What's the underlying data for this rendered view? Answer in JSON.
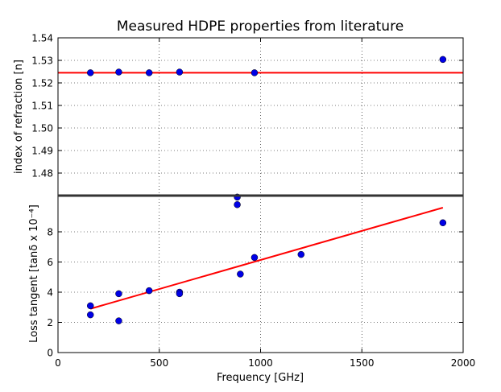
{
  "chart_data": [
    {
      "type": "scatter",
      "title": "Measured HDPE properties from literature",
      "ylabel": "index of refraction [n]",
      "xlabel": "",
      "xlim": [
        0,
        2000
      ],
      "ylim": [
        1.47,
        1.54
      ],
      "y_tick_labels": [
        "1.48",
        "1.49",
        "1.50",
        "1.51",
        "1.52",
        "1.53",
        "1.54"
      ],
      "grid": "dotted, both axes",
      "series": [
        {
          "marker": "circle",
          "color": "#0000e6",
          "x": [
            160,
            300,
            450,
            600,
            970,
            1900
          ],
          "y": [
            1.5245,
            1.5248,
            1.5245,
            1.5248,
            1.5245,
            1.5304
          ]
        }
      ],
      "fit_line": {
        "color": "#ff0000",
        "y": 1.5245
      }
    },
    {
      "type": "scatter",
      "title": "",
      "ylabel": "Loss tangent [tanδ x 10⁻⁴]",
      "xlabel": "Frequency [GHz]",
      "xlim": [
        0,
        2000
      ],
      "ylim": [
        0,
        10.4
      ],
      "x_tick_labels": [
        "0",
        "500",
        "1000",
        "1500",
        "2000"
      ],
      "y_tick_labels": [
        "0",
        "2",
        "4",
        "6",
        "8"
      ],
      "grid": "dotted, both axes",
      "series": [
        {
          "marker": "circle",
          "color": "#0000e6",
          "x": [
            160,
            160,
            300,
            300,
            450,
            600,
            600,
            885,
            885,
            900,
            970,
            1200,
            1900
          ],
          "y": [
            3.1,
            2.5,
            3.9,
            2.1,
            4.1,
            4.0,
            3.9,
            10.3,
            9.8,
            5.2,
            6.3,
            6.5,
            8.6
          ]
        }
      ],
      "fit_line": {
        "color": "#ff0000",
        "x": [
          160,
          1900
        ],
        "y": [
          2.9,
          9.6
        ]
      }
    }
  ]
}
